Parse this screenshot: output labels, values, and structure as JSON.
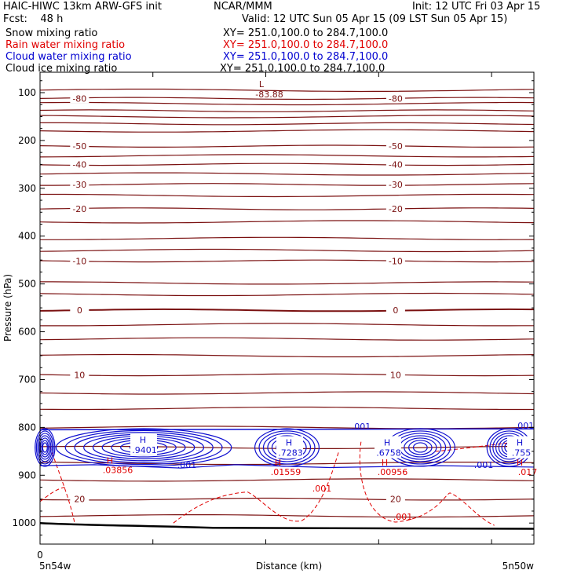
{
  "header": {
    "title_left": "HAIC-HIWC 13km ARW-GFS init",
    "center": "NCAR/MMM",
    "init": "Init: 12 UTC Fri 03 Apr 15",
    "fcst": "Fcst:    48 h",
    "valid": "Valid: 12 UTC Sun 05 Apr 15 (09 LST Sun 05 Apr 15)"
  },
  "fields": [
    {
      "name": "Snow mixing ratio",
      "xy": "XY= 251.0,100.0 to 284.7,100.0",
      "color": "#000000"
    },
    {
      "name": "Rain water mixing ratio",
      "xy": "XY= 251.0,100.0 to 284.7,100.0",
      "color": "#e00000"
    },
    {
      "name": "Cloud water mixing ratio",
      "xy": "XY= 251.0,100.0 to 284.7,100.0",
      "color": "#0000d0"
    },
    {
      "name": "Cloud ice mixing ratio",
      "xy": "XY= 251.0,100.0 to 284.7,100.0",
      "color": "#000000"
    }
  ],
  "chart_data": {
    "type": "line",
    "xlabel": "Distance (km)",
    "ylabel": "Pressure (hPa)",
    "ylim": [
      1050,
      50
    ],
    "y_ticks": [
      100,
      200,
      300,
      400,
      500,
      600,
      700,
      800,
      900,
      1000
    ],
    "x_tick_labels": {
      "left_zero": "0",
      "left": "5n54w",
      "right": "5n50w"
    },
    "temperature_contours": [
      {
        "value": -80,
        "label": "-80",
        "pressure": 112
      },
      {
        "value": -70,
        "pressure": 138
      },
      {
        "value": -60,
        "pressure": 165
      },
      {
        "value": -50,
        "label": "-50",
        "pressure": 212
      },
      {
        "value": -40,
        "label": "-40",
        "pressure": 250
      },
      {
        "value": -30,
        "label": "-30",
        "pressure": 292
      },
      {
        "value": -20,
        "label": "-20",
        "pressure": 343
      },
      {
        "value": -10,
        "label": "-10",
        "pressure": 452
      },
      {
        "value": 0,
        "label": "0",
        "pressure": 555
      },
      {
        "value": 10,
        "label": "10",
        "pressure": 690
      },
      {
        "value": 20,
        "label": "20",
        "pressure": 950
      }
    ],
    "temperature_min": {
      "marker": "L",
      "value": "-83.88"
    },
    "cloud_water_maxima": [
      {
        "marker": "H",
        "value": ".9401"
      },
      {
        "marker": "H",
        "value": ".7283"
      },
      {
        "marker": "H",
        "value": ".6758"
      },
      {
        "marker": "H",
        "value": ".755"
      }
    ],
    "rain_water_maxima": [
      {
        "marker": "H",
        "value": ".03856"
      },
      {
        "marker": "H",
        "value": ".01559"
      },
      {
        "marker": "H",
        "value": ".00956"
      },
      {
        "marker": "H",
        "value": ".017"
      }
    ],
    "contour_labels": {
      "cloud_water": [
        ".001",
        ".001",
        ".001",
        ".001"
      ],
      "rain_water": [
        ".001",
        ".001"
      ]
    },
    "colors": {
      "temperature": "#7a1010",
      "cloud_water": "#1010d0",
      "rain_water": "#e00000",
      "terrain": "#000000"
    }
  }
}
